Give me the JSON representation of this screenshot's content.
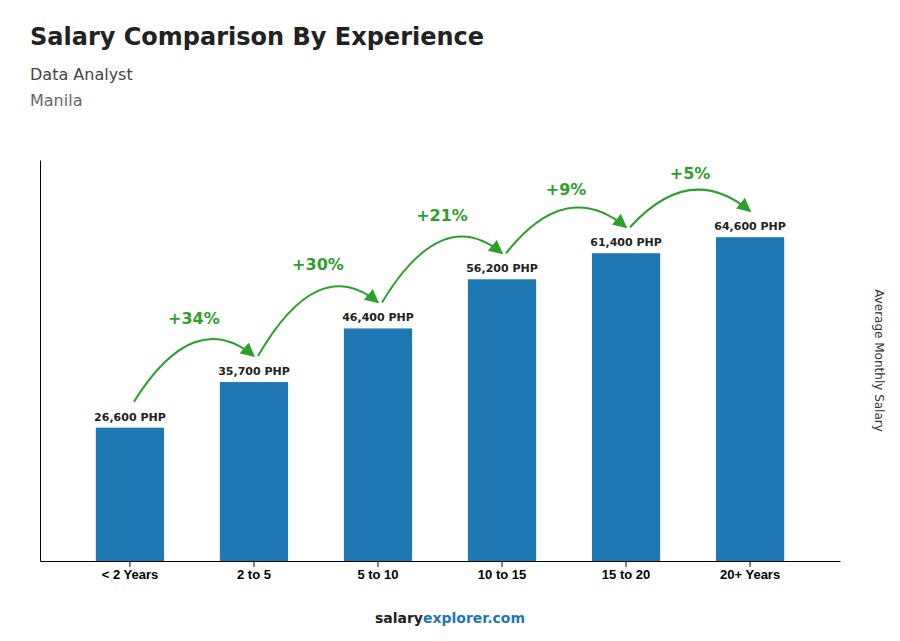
{
  "chart_data": {
    "type": "bar",
    "title": "Salary Comparison By Experience",
    "subtitle": [
      "Data Analyst",
      "Manila"
    ],
    "ylabel": "Average Monthly Salary",
    "footer": [
      "salary",
      "explorer.com"
    ],
    "categories": [
      "< 2 Years",
      "2 to 5",
      "5 to 10",
      "10 to 15",
      "15 to 20",
      "20+ Years"
    ],
    "values": [
      26600,
      35700,
      46400,
      56200,
      61400,
      64600
    ],
    "value_labels": [
      "26,600 PHP",
      "35,700 PHP",
      "46,400 PHP",
      "56,200 PHP",
      "61,400 PHP",
      "64,600 PHP"
    ],
    "data_labels": true,
    "annotations": [
      "+34%",
      "+30%",
      "+21%",
      "+9%",
      "+5%"
    ],
    "ylim": [
      0,
      80000
    ],
    "tick_labels": "x",
    "grid": false
  }
}
